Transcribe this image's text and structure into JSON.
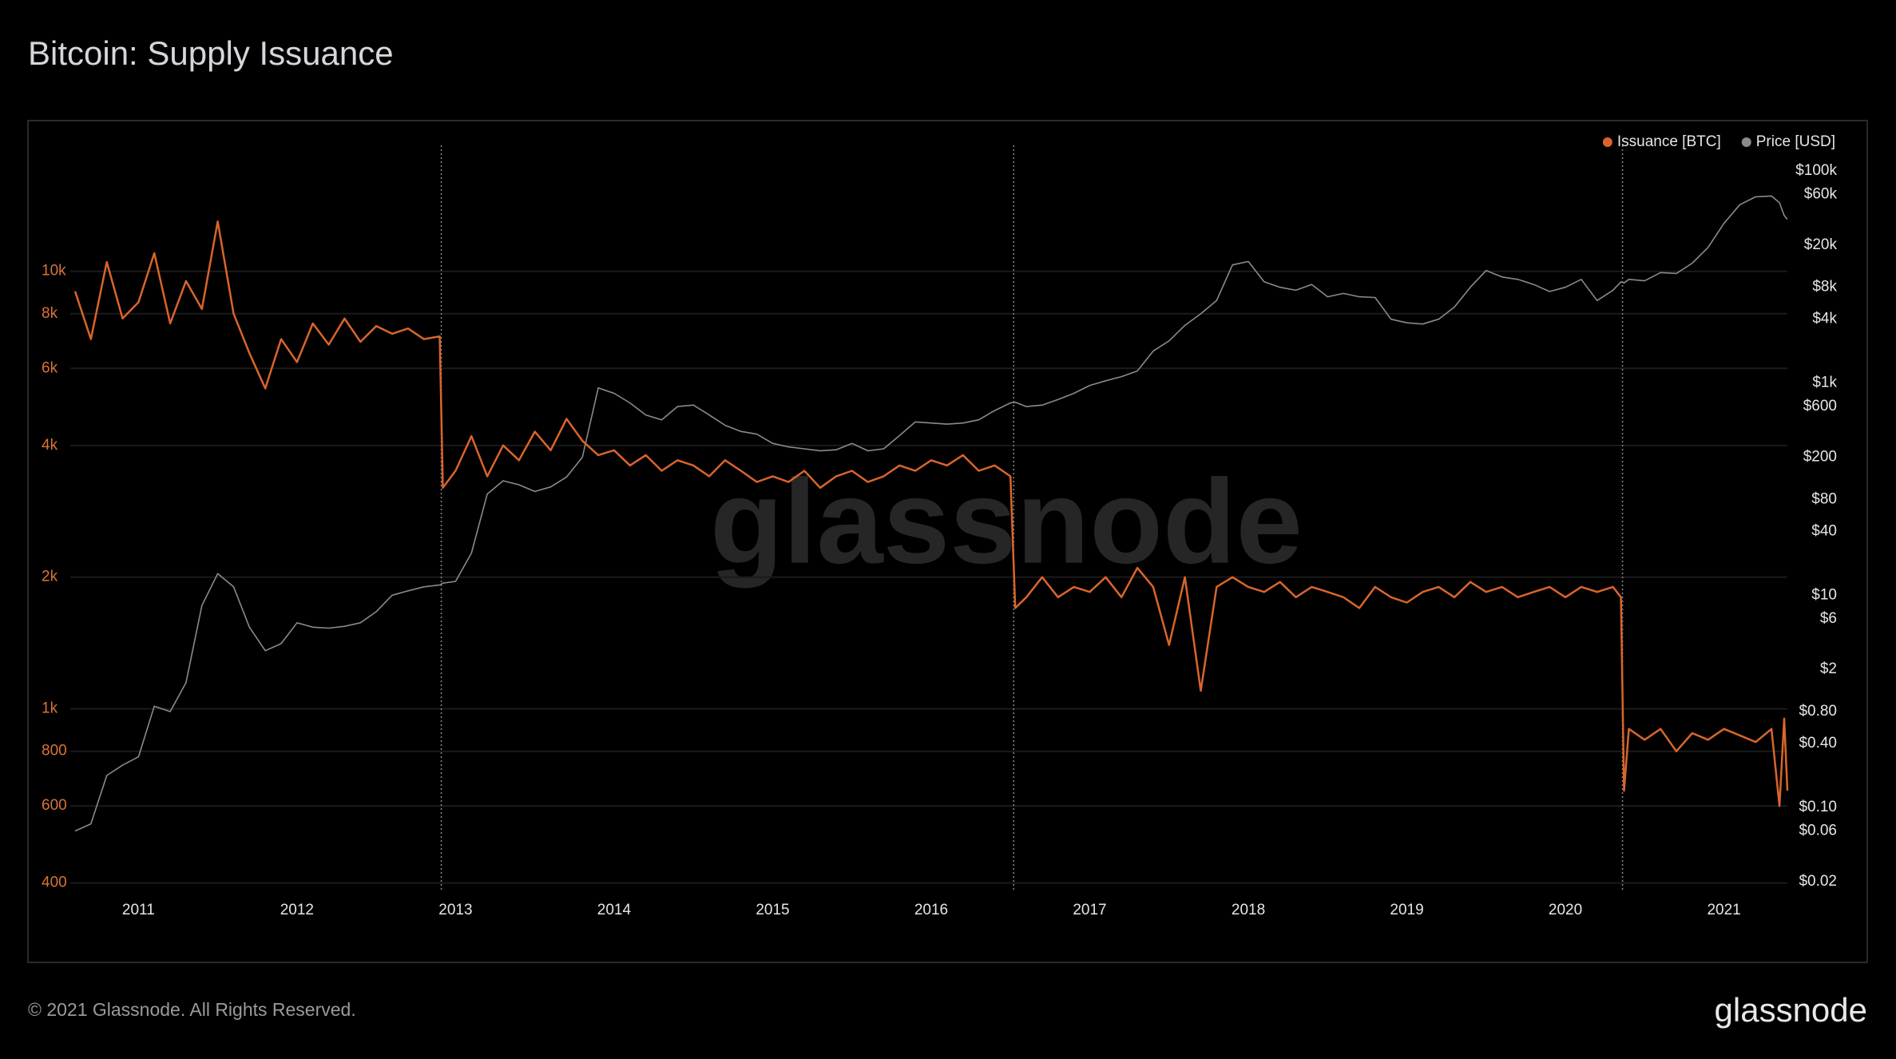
{
  "chart_data": {
    "type": "line",
    "title": "Bitcoin: Supply Issuance",
    "watermark": "glassnode",
    "x": [
      2010.6,
      2010.7,
      2010.8,
      2010.9,
      2011.0,
      2011.1,
      2011.2,
      2011.3,
      2011.4,
      2011.5,
      2011.6,
      2011.7,
      2011.8,
      2011.9,
      2012.0,
      2012.1,
      2012.2,
      2012.3,
      2012.4,
      2012.5,
      2012.6,
      2012.7,
      2012.8,
      2012.9,
      2012.92,
      2013.0,
      2013.1,
      2013.2,
      2013.3,
      2013.4,
      2013.5,
      2013.6,
      2013.7,
      2013.8,
      2013.9,
      2014.0,
      2014.1,
      2014.2,
      2014.3,
      2014.4,
      2014.5,
      2014.6,
      2014.7,
      2014.8,
      2014.9,
      2015.0,
      2015.1,
      2015.2,
      2015.3,
      2015.4,
      2015.5,
      2015.6,
      2015.7,
      2015.8,
      2015.9,
      2016.0,
      2016.1,
      2016.2,
      2016.3,
      2016.4,
      2016.5,
      2016.53,
      2016.6,
      2016.7,
      2016.8,
      2016.9,
      2017.0,
      2017.1,
      2017.2,
      2017.3,
      2017.4,
      2017.5,
      2017.6,
      2017.7,
      2017.8,
      2017.9,
      2018.0,
      2018.1,
      2018.2,
      2018.3,
      2018.4,
      2018.5,
      2018.6,
      2018.7,
      2018.8,
      2018.9,
      2019.0,
      2019.1,
      2019.2,
      2019.3,
      2019.4,
      2019.5,
      2019.6,
      2019.7,
      2019.8,
      2019.9,
      2020.0,
      2020.1,
      2020.2,
      2020.3,
      2020.35,
      2020.37,
      2020.4,
      2020.5,
      2020.6,
      2020.7,
      2020.8,
      2020.9,
      2021.0,
      2021.1,
      2021.2,
      2021.3,
      2021.35,
      2021.38,
      2021.4
    ],
    "xlim": [
      2010.57,
      2021.4
    ],
    "xticks": [
      2011,
      2012,
      2013,
      2014,
      2015,
      2016,
      2017,
      2018,
      2019,
      2020,
      2021
    ],
    "ylog": true,
    "ylim": [
      383,
      19400
    ],
    "yticks": [
      400,
      600,
      800,
      {
        "value": 1000,
        "label": "1k"
      },
      {
        "value": 2000,
        "label": "2k"
      },
      {
        "value": 4000,
        "label": "4k"
      },
      {
        "value": 6000,
        "label": "6k"
      },
      {
        "value": 8000,
        "label": "8k"
      },
      {
        "value": 10000,
        "label": "10k"
      }
    ],
    "y2log": true,
    "y2lim": [
      0.0162,
      174000
    ],
    "y2ticks": [
      {
        "value": 100000,
        "label": "$100k"
      },
      {
        "value": 60000,
        "label": "$60k"
      },
      {
        "value": 20000,
        "label": "$20k"
      },
      {
        "value": 8000,
        "label": "$8k"
      },
      {
        "value": 4000,
        "label": "$4k"
      },
      {
        "value": 1000,
        "label": "$1k"
      },
      {
        "value": 600,
        "label": "$600"
      },
      {
        "value": 200,
        "label": "$200"
      },
      {
        "value": 80,
        "label": "$80"
      },
      {
        "value": 40,
        "label": "$40"
      },
      {
        "value": 10,
        "label": "$10"
      },
      {
        "value": 6,
        "label": "$6"
      },
      {
        "value": 2,
        "label": "$2"
      },
      {
        "value": 0.8,
        "label": "$0.80"
      },
      {
        "value": 0.4,
        "label": "$0.40"
      },
      {
        "value": 0.1,
        "label": "$0.10"
      },
      {
        "value": 0.06,
        "label": "$0.06"
      },
      {
        "value": 0.02,
        "label": "$0.02"
      }
    ],
    "grid": true,
    "legend": "top-right",
    "halvings": [
      2012.91,
      2016.52,
      2020.36
    ],
    "series": [
      {
        "name": "Issuance [BTC]",
        "color": "#d9652b",
        "values": [
          9000,
          7000,
          10500,
          7800,
          8500,
          11000,
          7600,
          9500,
          8200,
          13000,
          8000,
          6500,
          5400,
          7000,
          6200,
          7600,
          6800,
          7800,
          6900,
          7500,
          7200,
          7400,
          7000,
          7100,
          3200,
          3500,
          4200,
          3400,
          4000,
          3700,
          4300,
          3900,
          4600,
          4100,
          3800,
          3900,
          3600,
          3800,
          3500,
          3700,
          3600,
          3400,
          3700,
          3500,
          3300,
          3400,
          3300,
          3500,
          3200,
          3400,
          3500,
          3300,
          3400,
          3600,
          3500,
          3700,
          3600,
          3800,
          3500,
          3600,
          3400,
          1700,
          1800,
          2000,
          1800,
          1900,
          1850,
          2000,
          1800,
          2100,
          1900,
          1400,
          2000,
          1100,
          1900,
          2000,
          1900,
          1850,
          1950,
          1800,
          1900,
          1850,
          1800,
          1700,
          1900,
          1800,
          1750,
          1850,
          1900,
          1800,
          1950,
          1850,
          1900,
          1800,
          1850,
          1900,
          1800,
          1900,
          1850,
          1900,
          1800,
          650,
          900,
          850,
          900,
          800,
          880,
          850,
          900,
          870,
          840,
          900,
          600,
          950,
          650
        ]
      },
      {
        "name": "Price [USD]",
        "color": "#8a8a8a",
        "axis": "y2",
        "values": [
          0.06,
          0.07,
          0.2,
          0.25,
          0.3,
          0.9,
          0.8,
          1.5,
          8,
          16,
          12,
          5,
          3,
          3.5,
          5.5,
          5,
          4.9,
          5.1,
          5.5,
          7,
          10,
          11,
          12,
          12.5,
          13,
          13.5,
          25,
          90,
          120,
          110,
          95,
          105,
          130,
          200,
          900,
          800,
          650,
          500,
          450,
          600,
          620,
          500,
          400,
          350,
          330,
          270,
          250,
          240,
          230,
          235,
          270,
          230,
          240,
          320,
          430,
          420,
          410,
          420,
          450,
          550,
          650,
          660,
          600,
          620,
          700,
          800,
          950,
          1050,
          1150,
          1300,
          2000,
          2500,
          3500,
          4500,
          6000,
          13000,
          14000,
          9000,
          8000,
          7500,
          8500,
          6500,
          7000,
          6500,
          6400,
          4000,
          3700,
          3600,
          4000,
          5200,
          8000,
          11500,
          10000,
          9500,
          8500,
          7300,
          8000,
          9500,
          6000,
          7500,
          9000,
          8800,
          9500,
          9200,
          11000,
          10800,
          13500,
          19000,
          32000,
          48000,
          57000,
          58000,
          50000,
          38000,
          35000
        ]
      }
    ]
  },
  "footer": {
    "copyright": "© 2021 Glassnode. All Rights Reserved.",
    "logo": "glassnode"
  }
}
